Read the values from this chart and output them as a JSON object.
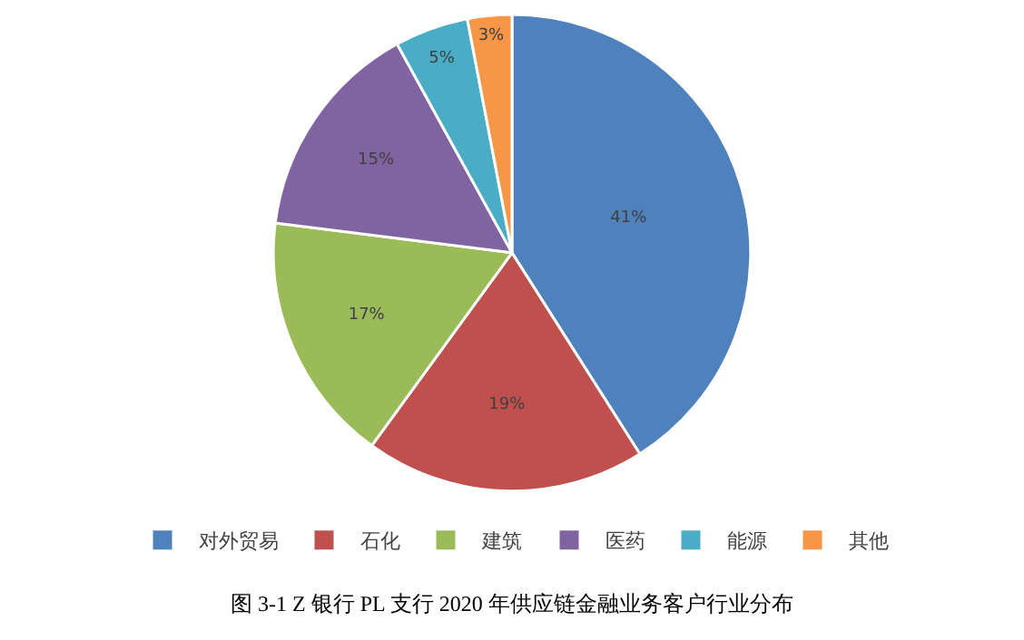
{
  "chart_data": {
    "type": "pie",
    "categories": [
      "对外贸易",
      "石化",
      "建筑",
      "医药",
      "能源",
      "其他"
    ],
    "values": [
      41,
      19,
      17,
      15,
      5,
      3
    ],
    "colors": [
      "#4f81bd",
      "#c0504d",
      "#9bbb59",
      "#8064a2",
      "#4bacc6",
      "#f79646"
    ],
    "value_labels": [
      "41%",
      "19%",
      "17%",
      "15%",
      "5%",
      "3%"
    ],
    "legend": "bottom",
    "annotations": [
      "图 3-1 Z 银行 PL 支行 2020 年供应链金融业务客户行业分布"
    ]
  }
}
